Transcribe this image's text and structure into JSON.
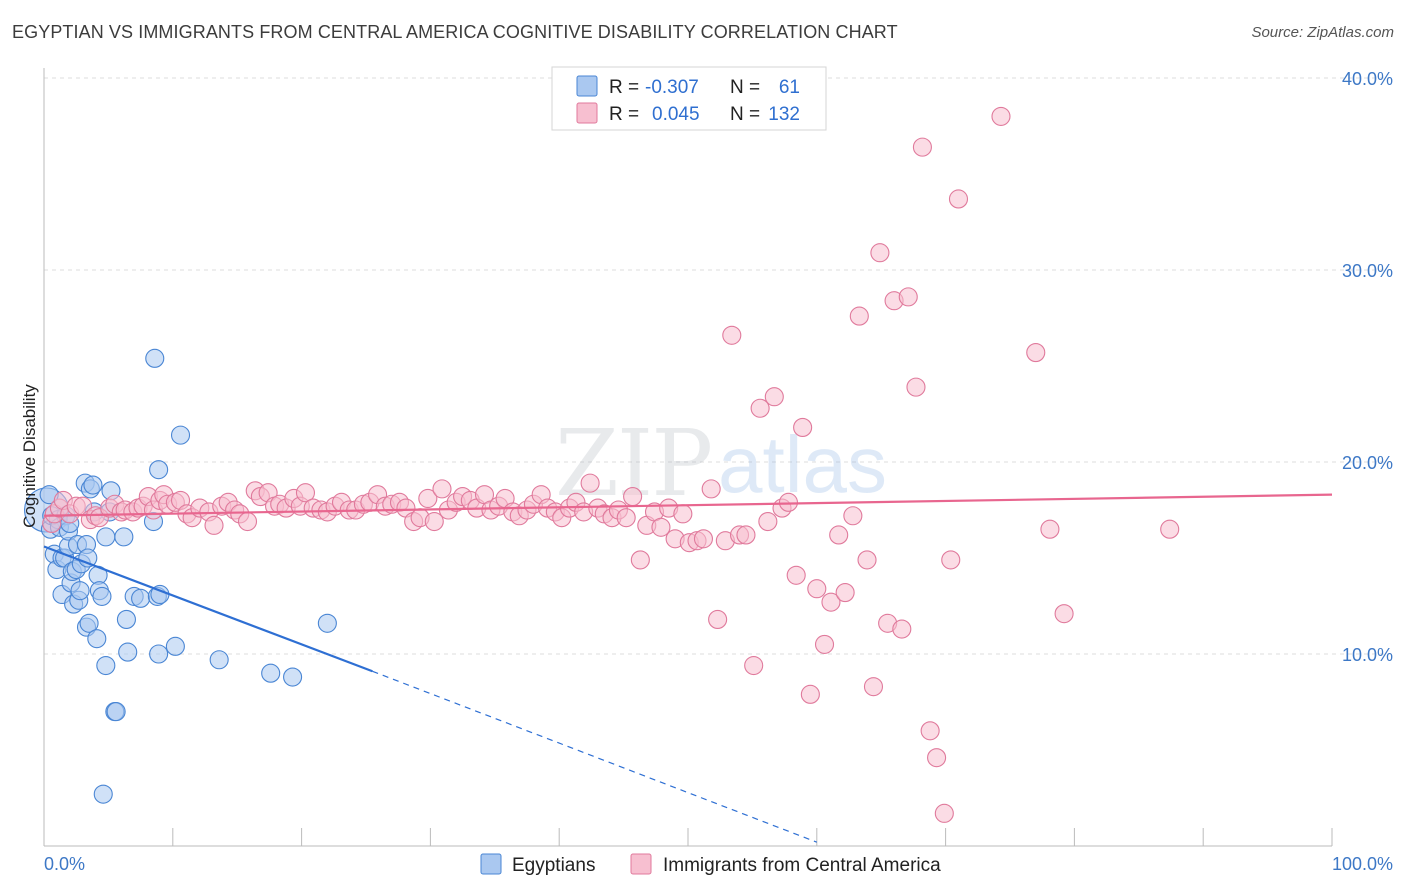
{
  "title": "EGYPTIAN VS IMMIGRANTS FROM CENTRAL AMERICA COGNITIVE DISABILITY CORRELATION CHART",
  "source": "Source: ZipAtlas.com",
  "watermark": {
    "zip": "ZIP",
    "atlas": "atlas"
  },
  "colors": {
    "blue_fill": "#aac8f0",
    "blue_stroke": "#4a86d4",
    "blue_line": "#2e6fd3",
    "pink_fill": "#f7bfd0",
    "pink_stroke": "#e07a9c",
    "pink_line": "#e8668f",
    "grid": "#dedede",
    "tick_text": "#3d78c6"
  },
  "legend": {
    "rows": [
      {
        "r_label": "R =",
        "r_value": "-0.307",
        "n_label": "N =",
        "n_value": "61"
      },
      {
        "r_label": "R =",
        "r_value": "0.045",
        "n_label": "N =",
        "n_value": "132"
      }
    ]
  },
  "bottom_legend": [
    "Egyptians",
    "Immigrants from Central America"
  ],
  "chart_data": {
    "type": "scatter",
    "title": "EGYPTIAN VS IMMIGRANTS FROM CENTRAL AMERICA COGNITIVE DISABILITY CORRELATION CHART",
    "xlabel": "",
    "ylabel": "Cognitive Disability",
    "xlim": [
      0,
      100
    ],
    "ylim": [
      0,
      40
    ],
    "x_tick_labels": [
      "0.0%",
      "100.0%"
    ],
    "y_ticks": [
      10,
      20,
      30,
      40
    ],
    "y_tick_labels": [
      "10.0%",
      "20.0%",
      "30.0%",
      "40.0%"
    ],
    "grid": true,
    "legend_position": "top-center",
    "series": [
      {
        "name": "Egyptians",
        "r": -0.307,
        "n": 61,
        "trend": {
          "x0": 0,
          "y0": 15.6,
          "x1": 25.5,
          "y1": 9.1,
          "dashed_to_x": 60,
          "dashed_to_y": 0.2
        },
        "points": [
          [
            0.2,
            17.5,
            3
          ],
          [
            0.4,
            18.3,
            1
          ],
          [
            0.5,
            16.5,
            1
          ],
          [
            0.6,
            17.2,
            1
          ],
          [
            0.8,
            15.2,
            1
          ],
          [
            1.0,
            14.4,
            1
          ],
          [
            1.1,
            17.0,
            1
          ],
          [
            1.2,
            16.6,
            1
          ],
          [
            1.4,
            15.0,
            1
          ],
          [
            1.4,
            13.1,
            1
          ],
          [
            1.6,
            15.0,
            1
          ],
          [
            1.7,
            17.2,
            1
          ],
          [
            1.9,
            15.6,
            1
          ],
          [
            1.9,
            16.4,
            1
          ],
          [
            2.0,
            16.8,
            1
          ],
          [
            2.1,
            13.7,
            1
          ],
          [
            2.2,
            14.3,
            1
          ],
          [
            2.3,
            12.6,
            1
          ],
          [
            2.5,
            14.4,
            1
          ],
          [
            2.6,
            15.7,
            1
          ],
          [
            2.7,
            12.8,
            1
          ],
          [
            2.8,
            13.3,
            1
          ],
          [
            2.9,
            14.7,
            1
          ],
          [
            3.2,
            18.9,
            1
          ],
          [
            3.3,
            15.7,
            1
          ],
          [
            3.3,
            11.4,
            1
          ],
          [
            3.4,
            15.0,
            1
          ],
          [
            3.5,
            11.6,
            1
          ],
          [
            3.6,
            18.6,
            1
          ],
          [
            3.8,
            18.8,
            1
          ],
          [
            3.9,
            17.4,
            1
          ],
          [
            4.1,
            10.8,
            1
          ],
          [
            4.2,
            14.1,
            1
          ],
          [
            4.3,
            13.3,
            1
          ],
          [
            4.5,
            13.0,
            1
          ],
          [
            4.6,
            2.7,
            1
          ],
          [
            4.8,
            9.4,
            1
          ],
          [
            4.8,
            16.1,
            1
          ],
          [
            5.1,
            17.4,
            1
          ],
          [
            5.2,
            18.5,
            1
          ],
          [
            5.5,
            7.0,
            1
          ],
          [
            5.6,
            7.0,
            1
          ],
          [
            6.2,
            16.1,
            1
          ],
          [
            6.4,
            11.8,
            1
          ],
          [
            6.5,
            10.1,
            1
          ],
          [
            7.0,
            13.0,
            1
          ],
          [
            7.5,
            12.9,
            1
          ],
          [
            8.5,
            16.9,
            1
          ],
          [
            8.6,
            25.4,
            1
          ],
          [
            8.8,
            13.0,
            1
          ],
          [
            8.9,
            10.0,
            1
          ],
          [
            8.9,
            19.6,
            1
          ],
          [
            9.0,
            13.1,
            1
          ],
          [
            10.2,
            10.4,
            1
          ],
          [
            10.6,
            21.4,
            1
          ],
          [
            13.6,
            9.7,
            1
          ],
          [
            17.6,
            9.0,
            1
          ],
          [
            19.3,
            8.8,
            1
          ],
          [
            22.0,
            11.6,
            1
          ]
        ]
      },
      {
        "name": "Immigrants from Central America",
        "r": 0.045,
        "n": 132,
        "trend": {
          "x0": 0,
          "y0": 17.2,
          "x1": 100,
          "y1": 18.3
        },
        "points": [
          [
            0.6,
            16.8,
            1
          ],
          [
            0.8,
            17.3,
            1
          ],
          [
            1.2,
            17.6,
            1
          ],
          [
            1.5,
            18.0,
            1
          ],
          [
            2.0,
            17.3,
            1
          ],
          [
            2.5,
            17.7,
            1
          ],
          [
            3.0,
            17.7,
            1
          ],
          [
            3.6,
            17.0,
            1
          ],
          [
            4.0,
            17.2,
            1
          ],
          [
            4.3,
            17.1,
            1
          ],
          [
            5.1,
            17.6,
            1
          ],
          [
            5.5,
            17.8,
            1
          ],
          [
            6.0,
            17.4,
            1
          ],
          [
            6.3,
            17.5,
            1
          ],
          [
            6.9,
            17.4,
            1
          ],
          [
            7.3,
            17.6,
            1
          ],
          [
            7.7,
            17.7,
            1
          ],
          [
            8.1,
            18.2,
            1
          ],
          [
            8.5,
            17.5,
            1
          ],
          [
            9.0,
            18.0,
            1
          ],
          [
            9.3,
            18.3,
            1
          ],
          [
            9.6,
            17.8,
            1
          ],
          [
            10.2,
            17.9,
            1
          ],
          [
            10.6,
            18.0,
            1
          ],
          [
            11.1,
            17.3,
            1
          ],
          [
            11.5,
            17.1,
            1
          ],
          [
            12.1,
            17.6,
            1
          ],
          [
            12.8,
            17.4,
            1
          ],
          [
            13.2,
            16.7,
            1
          ],
          [
            13.8,
            17.7,
            1
          ],
          [
            14.3,
            17.9,
            1
          ],
          [
            14.8,
            17.5,
            1
          ],
          [
            15.2,
            17.3,
            1
          ],
          [
            15.8,
            16.9,
            1
          ],
          [
            16.4,
            18.5,
            1
          ],
          [
            16.8,
            18.2,
            1
          ],
          [
            17.4,
            18.4,
            1
          ],
          [
            17.9,
            17.7,
            1
          ],
          [
            18.3,
            17.8,
            1
          ],
          [
            18.8,
            17.6,
            1
          ],
          [
            19.4,
            18.1,
            1
          ],
          [
            19.9,
            17.7,
            1
          ],
          [
            20.3,
            18.4,
            1
          ],
          [
            20.9,
            17.6,
            1
          ],
          [
            21.5,
            17.5,
            1
          ],
          [
            22.0,
            17.4,
            1
          ],
          [
            22.6,
            17.7,
            1
          ],
          [
            23.1,
            17.9,
            1
          ],
          [
            23.7,
            17.5,
            1
          ],
          [
            24.2,
            17.5,
            1
          ],
          [
            24.8,
            17.8,
            1
          ],
          [
            25.3,
            17.9,
            1
          ],
          [
            25.9,
            18.3,
            1
          ],
          [
            26.5,
            17.7,
            1
          ],
          [
            27.0,
            17.8,
            1
          ],
          [
            27.6,
            17.9,
            1
          ],
          [
            28.1,
            17.6,
            1
          ],
          [
            28.7,
            16.9,
            1
          ],
          [
            29.2,
            17.1,
            1
          ],
          [
            29.8,
            18.1,
            1
          ],
          [
            30.3,
            16.9,
            1
          ],
          [
            30.9,
            18.6,
            1
          ],
          [
            31.4,
            17.5,
            1
          ],
          [
            32.0,
            17.9,
            1
          ],
          [
            32.5,
            18.2,
            1
          ],
          [
            33.1,
            18.0,
            1
          ],
          [
            33.6,
            17.6,
            1
          ],
          [
            34.2,
            18.3,
            1
          ],
          [
            34.7,
            17.5,
            1
          ],
          [
            35.3,
            17.7,
            1
          ],
          [
            35.8,
            18.1,
            1
          ],
          [
            36.4,
            17.4,
            1
          ],
          [
            36.9,
            17.2,
            1
          ],
          [
            37.5,
            17.5,
            1
          ],
          [
            38.0,
            17.8,
            1
          ],
          [
            38.6,
            18.3,
            1
          ],
          [
            39.1,
            17.6,
            1
          ],
          [
            39.7,
            17.4,
            1
          ],
          [
            40.2,
            17.1,
            1
          ],
          [
            40.8,
            17.6,
            1
          ],
          [
            41.3,
            17.9,
            1
          ],
          [
            41.9,
            17.4,
            1
          ],
          [
            42.4,
            18.9,
            1
          ],
          [
            43.0,
            17.6,
            1
          ],
          [
            43.5,
            17.3,
            1
          ],
          [
            44.1,
            17.1,
            1
          ],
          [
            44.6,
            17.5,
            1
          ],
          [
            45.2,
            17.1,
            1
          ],
          [
            45.7,
            18.2,
            1
          ],
          [
            46.3,
            14.9,
            1
          ],
          [
            46.8,
            16.7,
            1
          ],
          [
            47.4,
            17.4,
            1
          ],
          [
            47.9,
            16.6,
            1
          ],
          [
            48.5,
            17.6,
            1
          ],
          [
            49.0,
            16.0,
            1
          ],
          [
            49.6,
            17.3,
            1
          ],
          [
            50.1,
            15.8,
            1
          ],
          [
            50.7,
            15.9,
            1
          ],
          [
            51.2,
            16.0,
            1
          ],
          [
            51.8,
            18.6,
            1
          ],
          [
            52.3,
            11.8,
            1
          ],
          [
            52.9,
            15.9,
            1
          ],
          [
            53.4,
            26.6,
            1
          ],
          [
            54.0,
            16.2,
            1
          ],
          [
            54.5,
            16.2,
            1
          ],
          [
            55.1,
            9.4,
            1
          ],
          [
            55.6,
            22.8,
            1
          ],
          [
            56.2,
            16.9,
            1
          ],
          [
            56.7,
            23.4,
            1
          ],
          [
            57.3,
            17.6,
            1
          ],
          [
            57.8,
            17.9,
            1
          ],
          [
            58.4,
            14.1,
            1
          ],
          [
            58.9,
            21.8,
            1
          ],
          [
            59.5,
            7.9,
            1
          ],
          [
            60.0,
            13.4,
            1
          ],
          [
            60.6,
            10.5,
            1
          ],
          [
            61.1,
            12.7,
            1
          ],
          [
            61.7,
            16.2,
            1
          ],
          [
            62.2,
            13.2,
            1
          ],
          [
            62.8,
            17.2,
            1
          ],
          [
            63.3,
            27.6,
            1
          ],
          [
            63.9,
            14.9,
            1
          ],
          [
            64.4,
            8.3,
            1
          ],
          [
            64.9,
            30.9,
            1
          ],
          [
            65.5,
            11.6,
            1
          ],
          [
            66.0,
            28.4,
            1
          ],
          [
            66.6,
            11.3,
            1
          ],
          [
            67.1,
            28.6,
            1
          ],
          [
            67.7,
            23.9,
            1
          ],
          [
            68.2,
            36.4,
            1
          ],
          [
            68.8,
            6.0,
            1
          ],
          [
            69.3,
            4.6,
            1
          ],
          [
            69.9,
            1.7,
            1
          ],
          [
            70.4,
            14.9,
            1
          ],
          [
            71.0,
            33.7,
            1
          ],
          [
            74.3,
            38.0,
            1
          ],
          [
            77.0,
            25.7,
            1
          ],
          [
            78.1,
            16.5,
            1
          ],
          [
            79.2,
            12.1,
            1
          ],
          [
            87.4,
            16.5,
            1
          ]
        ]
      }
    ]
  }
}
